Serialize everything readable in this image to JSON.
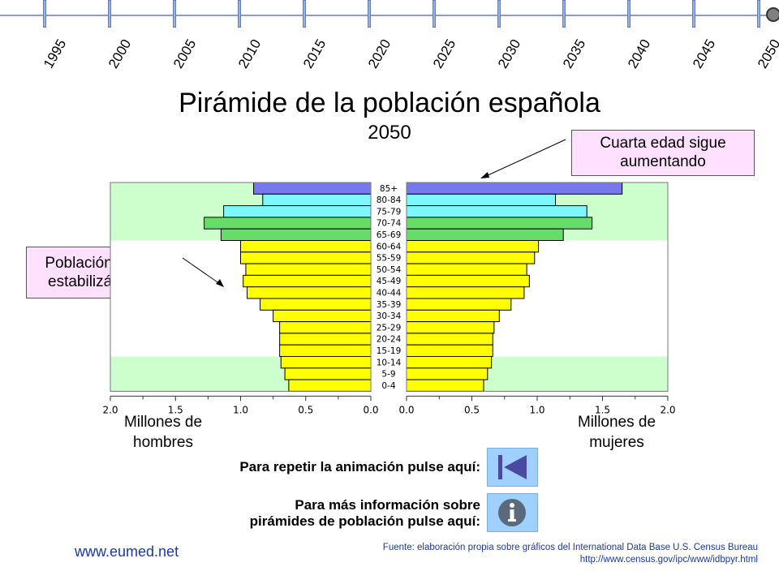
{
  "timeline": {
    "years": [
      "1995",
      "2000",
      "2005",
      "2010",
      "2015",
      "2020",
      "2025",
      "2030",
      "2035",
      "2040",
      "2045",
      "2050"
    ]
  },
  "title": "Pirámide de la población española",
  "subtitle": "2050",
  "callouts": {
    "top": [
      "Cuarta edad sigue",
      "aumentando"
    ],
    "left": [
      "Población activa",
      "estabilizándose"
    ]
  },
  "axis_captions": {
    "left": [
      "Millones de",
      "hombres"
    ],
    "right": [
      "Millones de",
      "mujeres"
    ]
  },
  "actions": {
    "repeat_prompt": "Para repetir la animación pulse aquí:",
    "info_prompt": [
      "Para más información sobre",
      "pirámides de población pulse aquí:"
    ],
    "repeat_icon": "skip-to-start-icon",
    "info_icon": "info-icon"
  },
  "footer": {
    "site": "www.eumed.net",
    "source_line1": "Fuente: elaboración propia sobre gráficos del International Data Base U.S. Census Bureau",
    "source_line2": "http://www.census.gov/ipc/www/idbpyr.html"
  },
  "colors": {
    "band_green": "#ccffcc",
    "bar_yellow": "#ffff00",
    "bar_green": "#66dd66",
    "bar_cyan": "#7ff7ff",
    "bar_purple": "#7777ee",
    "callout_bg": "#ffe0ff",
    "button_bg": "#9fd0ff",
    "link_blue": "#1a3aa0"
  },
  "chart_data": {
    "type": "bar",
    "orientation": "population-pyramid",
    "categories": [
      "85+",
      "80-84",
      "75-79",
      "70-74",
      "65-69",
      "60-64",
      "55-59",
      "50-54",
      "45-49",
      "40-44",
      "35-39",
      "30-34",
      "25-29",
      "20-24",
      "15-19",
      "10-14",
      "5-9",
      "0-4"
    ],
    "series": [
      {
        "name": "hombres",
        "values": [
          0.9,
          0.83,
          1.13,
          1.28,
          1.15,
          1.0,
          1.0,
          0.96,
          0.98,
          0.95,
          0.85,
          0.75,
          0.7,
          0.7,
          0.7,
          0.69,
          0.66,
          0.63
        ]
      },
      {
        "name": "mujeres",
        "values": [
          1.65,
          1.14,
          1.38,
          1.42,
          1.2,
          1.01,
          0.98,
          0.92,
          0.94,
          0.9,
          0.8,
          0.71,
          0.67,
          0.66,
          0.66,
          0.65,
          0.62,
          0.59
        ]
      }
    ],
    "bar_colors": [
      "#7777ee",
      "#7ff7ff",
      "#7ff7ff",
      "#66dd66",
      "#66dd66",
      "#ffff00",
      "#ffff00",
      "#ffff00",
      "#ffff00",
      "#ffff00",
      "#ffff00",
      "#ffff00",
      "#ffff00",
      "#ffff00",
      "#ffff00",
      "#ffff00",
      "#ffff00",
      "#ffff00"
    ],
    "xlim": [
      0,
      2.0
    ],
    "xticks": [
      "2.0",
      "1.5",
      "1.0",
      "0.5",
      "0.0"
    ],
    "xticks_right": [
      "0.0",
      "0.5",
      "1.0",
      "1.5",
      "2.0"
    ],
    "highlight_bands": [
      {
        "from": "85+",
        "to": "65-69"
      },
      {
        "from": "10-14",
        "to": "0-4"
      }
    ],
    "title": "Pirámide de la población española",
    "subtitle": "2050"
  }
}
